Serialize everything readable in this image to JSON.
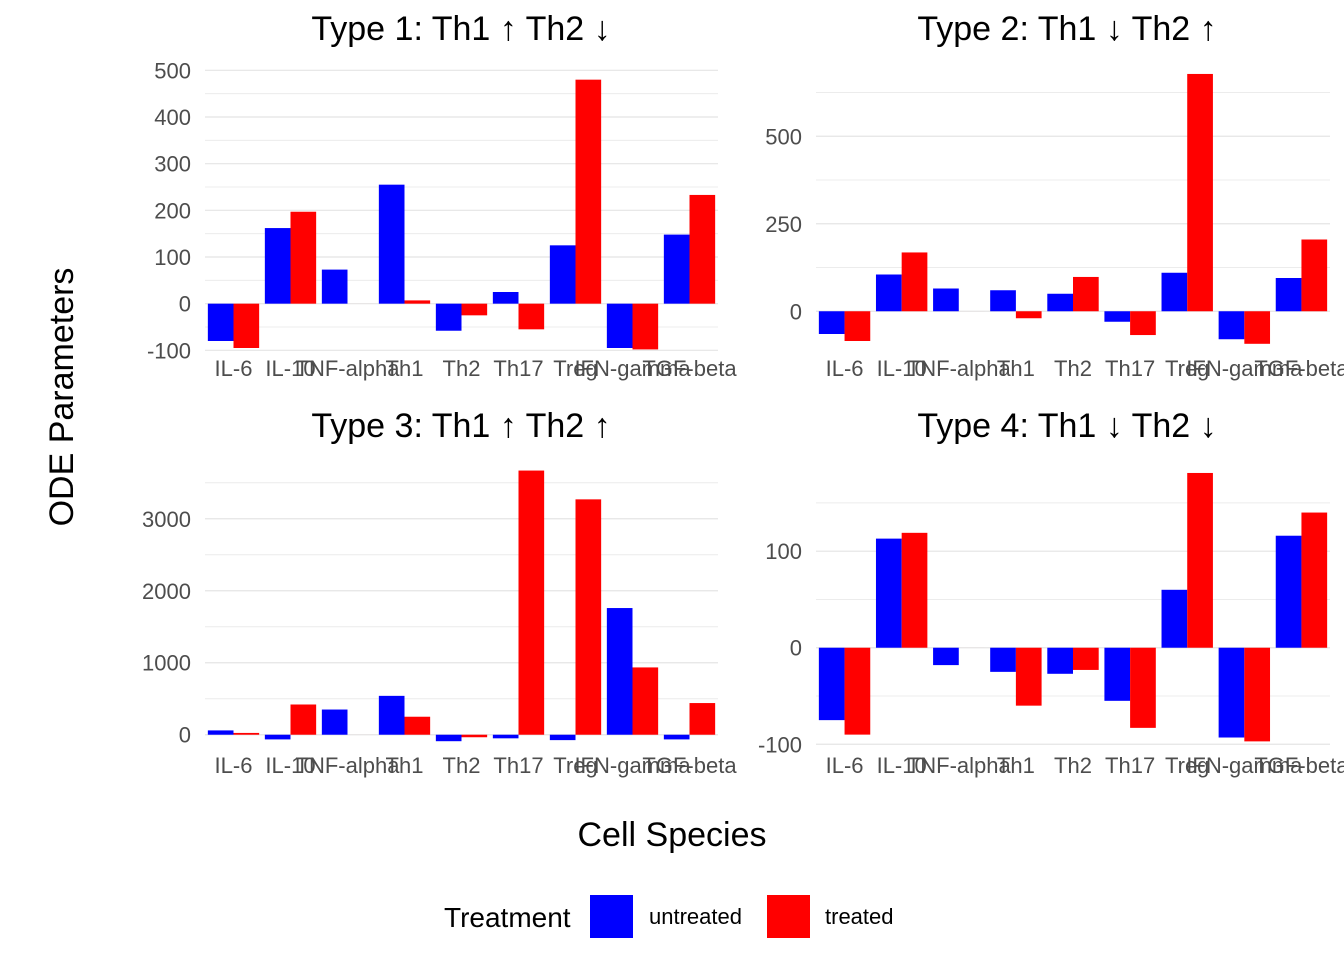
{
  "chart_data": {
    "type": "bar",
    "xlabel": "Cell Species",
    "ylabel": "ODE Parameters",
    "legend": {
      "title": "Treatment",
      "position": "bottom",
      "entries": [
        {
          "name": "untreated",
          "color": "#0000ff"
        },
        {
          "name": "treated",
          "color": "#ff0000"
        }
      ]
    },
    "categories": [
      "IL-6",
      "IL-10",
      "TNF-alpha",
      "Th1",
      "Th2",
      "Th17",
      "Treg",
      "IFN-gamma",
      "TGF-beta"
    ],
    "grid": true,
    "panels": [
      {
        "title": "Type 1: Th1 ↑  Th2 ↓",
        "yticks": [
          -100,
          0,
          100,
          200,
          300,
          400,
          500
        ],
        "ylim": [
          -110,
          490
        ],
        "series": [
          {
            "name": "untreated",
            "values": [
              -80,
              162,
              73,
              255,
              -58,
              25,
              125,
              -95,
              148
            ]
          },
          {
            "name": "treated",
            "values": [
              -95,
              197,
              0,
              7,
              -25,
              -55,
              480,
              -98,
              233
            ]
          }
        ]
      },
      {
        "title": "Type 2: Th1 ↓  Th2 ↑",
        "yticks": [
          0,
          250,
          500
        ],
        "ylim": [
          -125,
          675
        ],
        "series": [
          {
            "name": "untreated",
            "values": [
              -65,
              105,
              65,
              60,
              50,
              -30,
              110,
              -80,
              95
            ]
          },
          {
            "name": "treated",
            "values": [
              -85,
              168,
              0,
              -20,
              98,
              -68,
              678,
              -93,
              205
            ]
          }
        ]
      },
      {
        "title": "Type 3: Th1 ↑  Th2 ↑",
        "yticks": [
          0,
          1000,
          2000,
          3000
        ],
        "ylim": [
          -240,
          3650
        ],
        "series": [
          {
            "name": "untreated",
            "values": [
              60,
              -65,
              350,
              540,
              -90,
              -50,
              -75,
              1760,
              -65
            ]
          },
          {
            "name": "treated",
            "values": [
              25,
              420,
              0,
              250,
              -35,
              3670,
              3270,
              935,
              440
            ]
          }
        ]
      },
      {
        "title": "Type 4: Th1 ↓  Th2 ↓",
        "yticks": [
          -100,
          0,
          100
        ],
        "ylim": [
          -108,
          182
        ],
        "series": [
          {
            "name": "untreated",
            "values": [
              -75,
              113,
              -18,
              -25,
              -27,
              -55,
              60,
              -93,
              116
            ]
          },
          {
            "name": "treated",
            "values": [
              -90,
              119,
              0,
              -60,
              -23,
              -83,
              181,
              -97,
              140
            ]
          }
        ]
      }
    ]
  }
}
